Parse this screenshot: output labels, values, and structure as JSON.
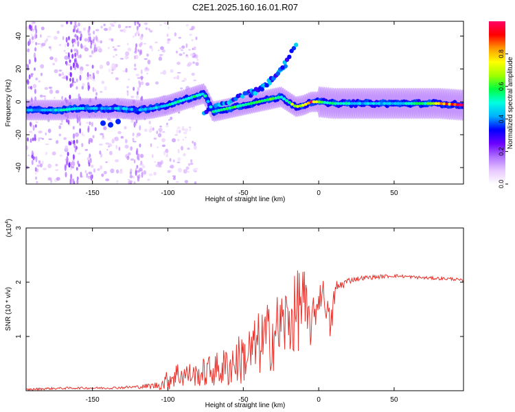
{
  "figure_title": "C2E1.2025.160.16.01.R07",
  "chart_data": [
    {
      "type": "heatmap",
      "title": "C2E1.2025.160.16.01.R07",
      "xlabel": "Height of straight line (km)",
      "ylabel": "Frequency (Hz)",
      "xlim": [
        -194,
        96
      ],
      "ylim": [
        -50,
        49
      ],
      "x_ticks": [
        -150,
        -100,
        -50,
        0,
        50
      ],
      "y_ticks": [
        -40,
        -20,
        0,
        20,
        40
      ],
      "colorbar": {
        "label": "Normalized spectral amplitude",
        "range": [
          0,
          1
        ],
        "ticks": [
          "0.0",
          "0.2",
          "0.4",
          "0.6",
          "0.8"
        ],
        "colors": [
          "#ffffff",
          "#e8c8ff",
          "#b070ff",
          "#6a00ff",
          "#0000ff",
          "#00b0ff",
          "#00ffe0",
          "#00ff40",
          "#a0ff00",
          "#ffff00",
          "#ff9900",
          "#ff0000",
          "#ff0066"
        ]
      },
      "main_ridge": {
        "x": [
          -194,
          -180,
          -170,
          -160,
          -150,
          -140,
          -130,
          -120,
          -110,
          -100,
          -90,
          -80,
          -76,
          -70,
          -60,
          -50,
          -40,
          -30,
          -25,
          -20,
          -15,
          -10,
          -5,
          0,
          10,
          20,
          30,
          40,
          50,
          60,
          70,
          80,
          96
        ],
        "y": [
          -5,
          -5,
          -5,
          -4,
          -4,
          -4,
          -4,
          -5,
          -4,
          -2,
          1,
          4,
          5,
          -6,
          -4,
          -2,
          0,
          2,
          3,
          0,
          -3,
          -2,
          0,
          0,
          -1,
          -1,
          -1,
          -1,
          -1,
          -1,
          -1,
          -1,
          -2
        ],
        "amplitude": [
          0.4,
          0.45,
          0.5,
          0.45,
          0.45,
          0.4,
          0.45,
          0.4,
          0.45,
          0.5,
          0.55,
          0.55,
          0.5,
          0.55,
          0.55,
          0.6,
          0.6,
          0.6,
          0.55,
          0.6,
          0.75,
          0.7,
          0.9,
          0.6,
          0.55,
          0.5,
          0.45,
          0.45,
          0.45,
          0.5,
          0.55,
          0.85,
          0.95
        ]
      },
      "secondary_ridges": [
        {
          "x": [
            -76,
            -65,
            -55,
            -45,
            -35,
            -28,
            -22
          ],
          "y": [
            -6,
            -2,
            2,
            6,
            10,
            16,
            22
          ]
        },
        {
          "x": [
            -45,
            -38,
            -32,
            -26,
            -22,
            -18,
            -14
          ],
          "y": [
            4,
            8,
            13,
            18,
            24,
            30,
            36
          ]
        }
      ]
    },
    {
      "type": "line",
      "xlabel": "Height of straight line (km)",
      "ylabel": "SNR (10 * v/v)",
      "y_scale_label": "(x10",
      "y_scale_exponent": "4",
      "xlim": [
        -194,
        96
      ],
      "ylim": [
        0,
        3
      ],
      "x_ticks": [
        -150,
        -100,
        -50,
        0,
        50
      ],
      "y_ticks": [
        1,
        2,
        3
      ],
      "series": [
        {
          "name": "SNR",
          "color": "#e8312a",
          "x": [
            -194,
            -180,
            -160,
            -140,
            -120,
            -105,
            -100,
            -95,
            -90,
            -85,
            -80,
            -75,
            -70,
            -65,
            -60,
            -55,
            -50,
            -45,
            -40,
            -35,
            -30,
            -25,
            -20,
            -15,
            -12,
            -10,
            -8,
            -5,
            -2,
            0,
            2,
            5,
            8,
            10,
            12,
            15,
            18,
            22,
            30,
            40,
            50,
            60,
            70,
            80,
            90,
            96
          ],
          "y": [
            0.02,
            0.04,
            0.05,
            0.05,
            0.07,
            0.1,
            0.2,
            0.3,
            0.3,
            0.3,
            0.28,
            0.35,
            0.38,
            0.4,
            0.45,
            0.55,
            0.6,
            0.7,
            0.85,
            0.95,
            1.05,
            1.2,
            1.3,
            1.4,
            1.7,
            1.6,
            1.3,
            1.2,
            1.5,
            1.7,
            1.85,
            1.6,
            1.1,
            1.7,
            1.9,
            1.95,
            2.0,
            2.05,
            2.08,
            2.1,
            2.12,
            2.1,
            2.08,
            2.07,
            2.06,
            2.02
          ],
          "noise": [
            0.02,
            0.02,
            0.02,
            0.02,
            0.03,
            0.08,
            0.2,
            0.25,
            0.25,
            0.22,
            0.2,
            0.3,
            0.3,
            0.35,
            0.4,
            0.45,
            0.5,
            0.55,
            0.6,
            0.65,
            0.7,
            0.7,
            0.7,
            0.75,
            0.9,
            0.8,
            0.6,
            0.4,
            0.35,
            0.3,
            0.3,
            0.3,
            0.3,
            0.25,
            0.15,
            0.1,
            0.08,
            0.05,
            0.04,
            0.04,
            0.03,
            0.03,
            0.03,
            0.03,
            0.03,
            0.03
          ]
        }
      ]
    }
  ]
}
